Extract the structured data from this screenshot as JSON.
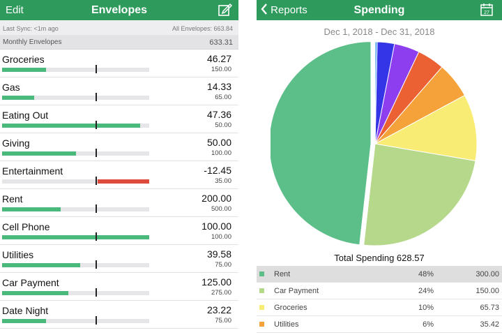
{
  "left": {
    "navbar": {
      "edit_label": "Edit",
      "title": "Envelopes",
      "compose_icon": "compose-icon"
    },
    "sync": {
      "last_sync": "Last Sync: <1m ago",
      "all_envelopes": "All Envelopes: 663.84"
    },
    "monthly": {
      "label": "Monthly Envelopes",
      "total": "633.31"
    },
    "envelopes": [
      {
        "name": "Groceries",
        "amount": "46.27",
        "budget": "150.00",
        "fill": 0.3,
        "negative": false
      },
      {
        "name": "Gas",
        "amount": "14.33",
        "budget": "65.00",
        "fill": 0.22,
        "negative": false
      },
      {
        "name": "Eating Out",
        "amount": "47.36",
        "budget": "50.00",
        "fill": 0.94,
        "negative": false
      },
      {
        "name": "Giving",
        "amount": "50.00",
        "budget": "100.00",
        "fill": 0.5,
        "negative": false
      },
      {
        "name": "Entertainment",
        "amount": "-12.45",
        "budget": "35.00",
        "fill": 0.35,
        "negative": true
      },
      {
        "name": "Rent",
        "amount": "200.00",
        "budget": "500.00",
        "fill": 0.4,
        "negative": false
      },
      {
        "name": "Cell Phone",
        "amount": "100.00",
        "budget": "100.00",
        "fill": 1.0,
        "negative": false
      },
      {
        "name": "Utilities",
        "amount": "39.58",
        "budget": "75.00",
        "fill": 0.53,
        "negative": false
      },
      {
        "name": "Car Payment",
        "amount": "125.00",
        "budget": "275.00",
        "fill": 0.45,
        "negative": false
      },
      {
        "name": "Date Night",
        "amount": "23.22",
        "budget": "75.00",
        "fill": 0.3,
        "negative": false
      }
    ]
  },
  "right": {
    "navbar": {
      "back_label": "Reports",
      "title": "Spending",
      "calendar_day": "27"
    },
    "date_range": "Dec 1, 2018 - Dec 31, 2018",
    "total_label": "Total Spending 628.57",
    "legend": [
      {
        "name": "Rent",
        "pct": "48%",
        "value": "300.00",
        "color": "#5cbf8a",
        "selected": true
      },
      {
        "name": "Car Payment",
        "pct": "24%",
        "value": "150.00",
        "color": "#b5d88a",
        "selected": false
      },
      {
        "name": "Groceries",
        "pct": "10%",
        "value": "65.73",
        "color": "#f8ec74",
        "selected": false
      },
      {
        "name": "Utilities",
        "pct": "6%",
        "value": "35.42",
        "color": "#f5a23a",
        "selected": false
      }
    ]
  },
  "chart_data": {
    "type": "pie",
    "slices": [
      {
        "label": "Rent",
        "value": 300.0,
        "color": "#5cbf8a"
      },
      {
        "label": "Car Payment",
        "value": 150.0,
        "color": "#b5d88a"
      },
      {
        "label": "Groceries",
        "value": 65.73,
        "color": "#f8ec74"
      },
      {
        "label": "Utilities",
        "value": 35.42,
        "color": "#f5a23a"
      },
      {
        "label": "",
        "value": 27,
        "color": "#ec6134"
      },
      {
        "label": "",
        "value": 25,
        "color": "#8d3ff0"
      },
      {
        "label": "",
        "value": 17,
        "color": "#3535e8"
      },
      {
        "label": "",
        "value": 2,
        "color": "#4aa0ee"
      }
    ],
    "exploded_index": 0
  }
}
